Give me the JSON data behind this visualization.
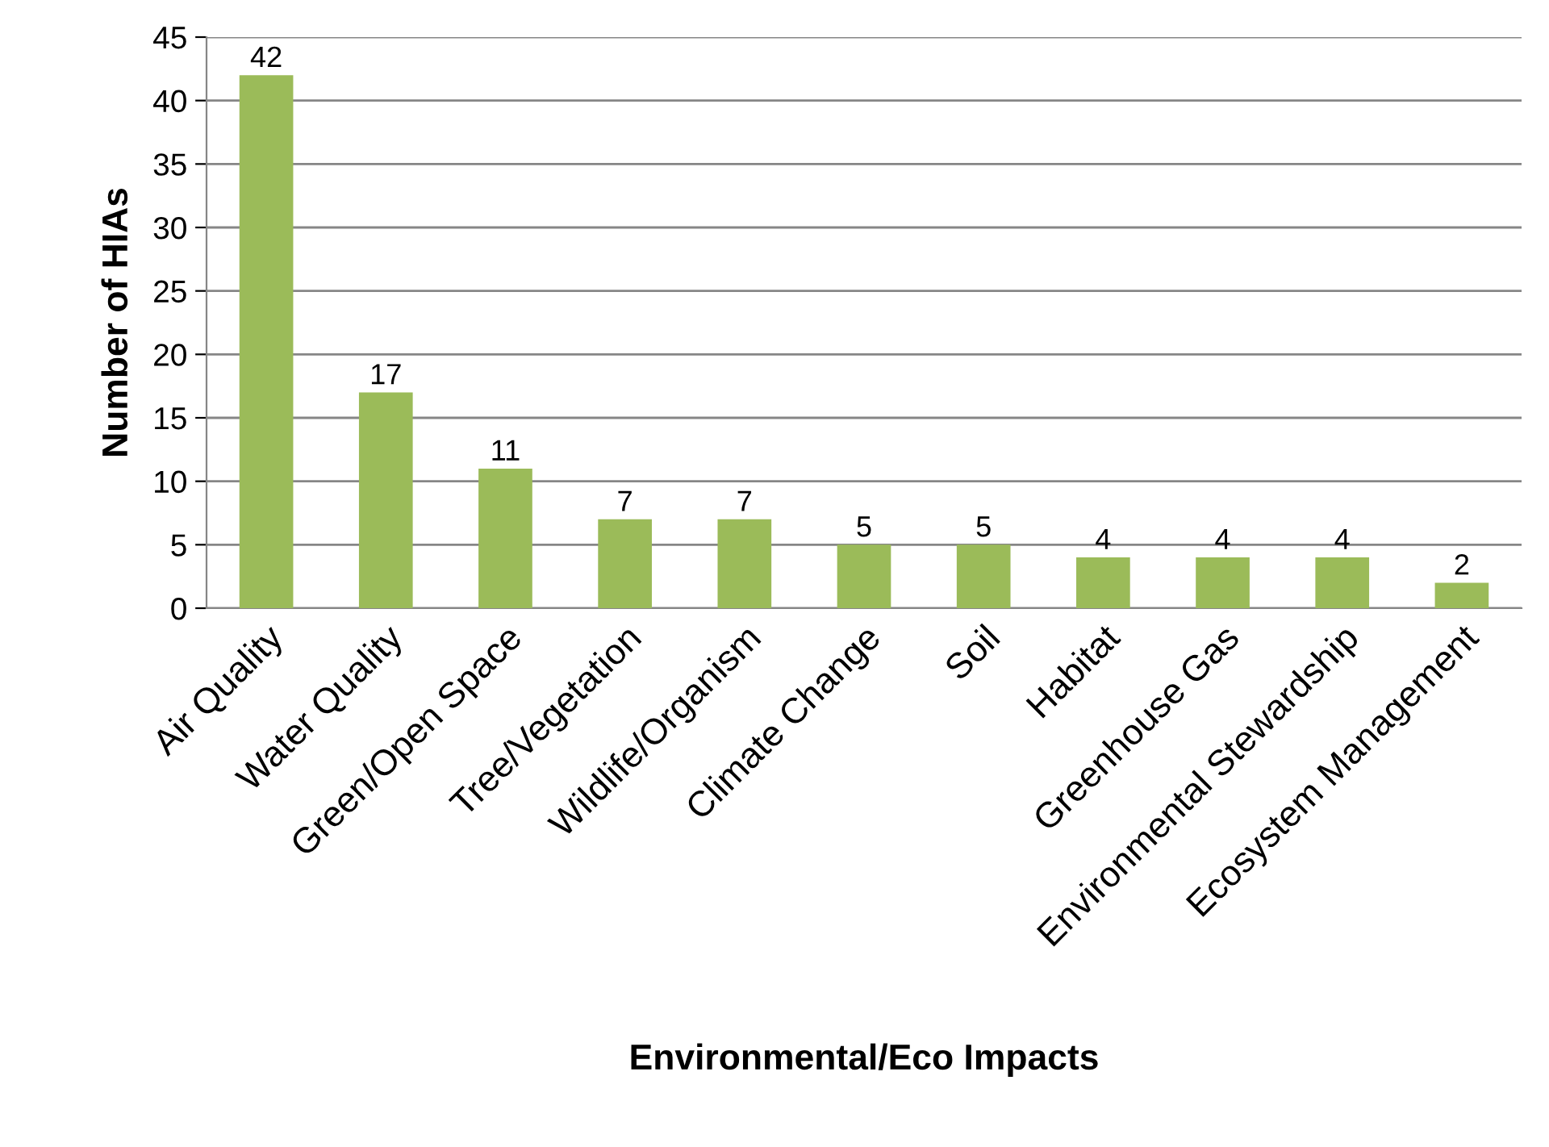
{
  "chart_data": {
    "type": "bar",
    "xlabel": "Environmental/Eco Impacts",
    "ylabel": "Number of HIAs",
    "categories": [
      "Air Quality",
      "Water Quality",
      "Green/Open Space",
      "Tree/Vegetation",
      "Wildlife/Organism",
      "Climate Change",
      "Soil",
      "Habitat",
      "Greenhouse Gas",
      "Environmental Stewardship",
      "Ecosystem Management"
    ],
    "values": [
      42,
      17,
      11,
      7,
      7,
      5,
      5,
      4,
      4,
      4,
      2
    ],
    "color": "#9bbb59",
    "ylim": [
      0,
      45
    ],
    "yticks": [
      0,
      5,
      10,
      15,
      20,
      25,
      30,
      35,
      40,
      45
    ],
    "grid": "y",
    "data_labels": true
  }
}
